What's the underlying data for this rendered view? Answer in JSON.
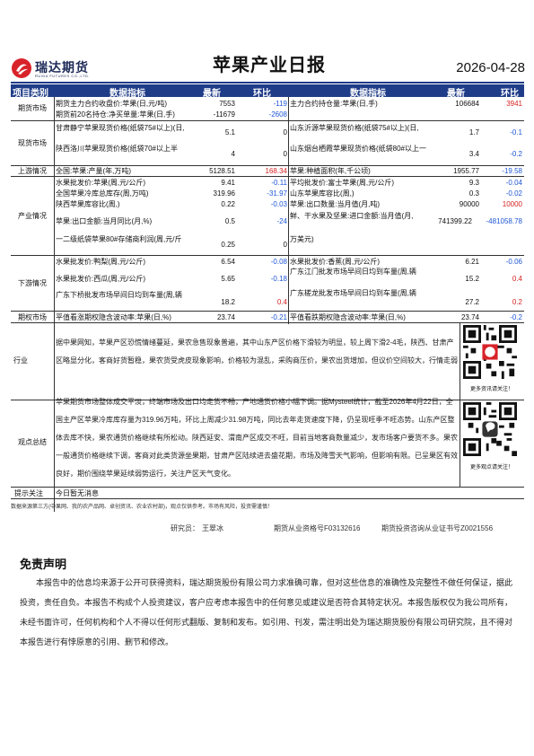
{
  "header": {
    "brand_name": "瑞达期货",
    "brand_sub": "RUIDA FUTURES CO.,LTD.",
    "title": "苹果产业日报",
    "date": "2026-04-28"
  },
  "colors": {
    "header_bg": "#1f3c88",
    "negative": "#1f57d6",
    "positive": "#d62222",
    "logo_red": "#d8232a"
  },
  "table": {
    "headers": {
      "category": "项目类别",
      "indicator": "数据指标",
      "latest": "最新",
      "change": "环比"
    },
    "rows": {
      "futures_1": {
        "category": "期货市场",
        "l_name": "期货主力合约收盘价:苹果(日,元/吨)",
        "l_val": "7553",
        "l_chg": "-119",
        "r_name": "主力合约持仓量:苹果(日,手)",
        "r_val": "106684",
        "r_chg": "3941"
      },
      "futures_2": {
        "l_name": "期货前20名持仓:净买单量:苹果(日,手)",
        "l_val": "-11679",
        "l_chg": "-2608"
      },
      "spot_1": {
        "l_name": "甘肃静宁苹果现货价格(纸袋75#以上)(日,",
        "l_val": "5.1",
        "l_chg": "0",
        "r_name": "山东沂源苹果现货价格(纸袋75#以上)(日,",
        "r_val": "1.7",
        "r_chg": "-0.1"
      },
      "spot_2": {
        "category": "现货市场",
        "l_name": "陕西洛川苹果现货价格(纸袋70#以上半",
        "l_val": "4",
        "l_chg": "0",
        "r_name": "山东烟台栖霞苹果现货价格(纸袋80#以上一",
        "r_val": "3.4",
        "r_chg": "-0.2"
      },
      "upstream": {
        "category": "上游情况",
        "l_name": "全国:苹果:产量(年,万吨)",
        "l_val": "5128.51",
        "l_chg": "168.34",
        "r_name": "苹果:种植面积(年,千公顷)",
        "r_val": "1955.77",
        "r_chg": "-19.58"
      },
      "ind_1": {
        "l_name": "水果批发价:苹果(周,元/公斤)",
        "l_val": "9.41",
        "l_chg": "-0.11",
        "r_name": "平均批发价:富士苹果(周,元/公斤)",
        "r_val": "9.3",
        "r_chg": "-0.04"
      },
      "ind_2": {
        "l_name": "全国苹果冷库总库存(周,万吨)",
        "l_val": "319.96",
        "l_chg": "-31.97",
        "r_name": "山东苹果库容比(周,)",
        "r_val": "0.3",
        "r_chg": "-0.02"
      },
      "ind_3": {
        "l_name": "陕西苹果库容比(周,)",
        "l_val": "0.22",
        "l_chg": "-0.03",
        "r_name": "苹果:出口数量:当月值(月,吨)",
        "r_val": "90000",
        "r_chg": "10000"
      },
      "ind_4": {
        "category": "产业情况",
        "l_name": "苹果:出口金额:当月同比(月,%)",
        "l_val": "0.5",
        "l_chg": "-24",
        "r_name": "鲜、干水果及坚果:进口金额:当月值(月,",
        "r_val": "741399.22",
        "r_chg": "-481058.78"
      },
      "ind_4b": {
        "r_name": "万美元)"
      },
      "ind_5": {
        "l_name": "一二级纸袋苹果80#存储商利润(周,元/斤",
        "l_val": "0.25",
        "l_chg": "0"
      },
      "down_1": {
        "l_name": "水果批发价:鸭梨(周,元/公斤)",
        "l_val": "6.54",
        "l_chg": "-0.08",
        "r_name": "水果批发价:香蕉(周,元/公斤)",
        "r_val": "6.21",
        "r_chg": "-0.06"
      },
      "down_2": {
        "category": "下游情况",
        "l_name": "水果批发价:西瓜(周,元/公斤)",
        "l_val": "5.65",
        "l_chg": "-0.18",
        "r_name": "广东江门批发市场早间日均到车量(周,辆",
        "r_val": "15.2",
        "r_chg": "0.4"
      },
      "down_3": {
        "l_name": "广东下桥批发市场早间日均到车量(周,辆",
        "l_val": "18.2",
        "l_chg": "0.4",
        "r_name": "广东槎龙批发市场早间日均到车量(周,辆",
        "r_val": "27.2",
        "r_chg": "0.2"
      },
      "options": {
        "category": "期权市场",
        "l_name": "平值看涨期权隐含波动率:苹果(日,%)",
        "l_val": "23.74",
        "l_chg": "-0.21",
        "r_name": "平值看跌期权隐含波动率:苹果(日,%)",
        "r_val": "23.74",
        "r_chg": "-0.2"
      }
    }
  },
  "industry": {
    "label": "行业",
    "text": "据中果网知，苹果产区恐慌情绪蔓延，果农急售现象普遍，其中山东产区价格下滑较为明显，较上周下滑2-4毛，陕西、甘肃产区略显分化，客商好货暂稳，果农货受虎皮现象影响，价格较为混乱，采购商压价，果农出货增加，但议价空间较大，行情走弱"
  },
  "qr1_caption": "更多资讯请关注！",
  "summary": {
    "label": "观点总结",
    "text": "苹果期货市场整体成交平淡，终端市场及出口均走货不畅，产地通货价格小幅下调。据Mysteel统计，截至2026年4月22日，全国主产区苹果冷库库存量为319.96万吨，环比上周减少31.98万吨，同比去年走货速度下降，仍呈现旺季不旺态势。山东产区整体去库不快，果农通货价格继续有所松动。陕西延安、渭南产区成交不旺，目前当地客商数量减少，发市场客户要货不多。果农一般通货价格继续下调，客商对此类货源坐果期，甘肃产区陆续进去盛花期，市场及降雪天气影响，但影响有限。已呈果区有效良好，期价围绕苹果延续弱势运行，关注产区天气变化。"
  },
  "qr2_caption": "更多观点请关注！",
  "notice": {
    "label": "提示关注",
    "text": "今日暂无消息"
  },
  "footer": {
    "source": "数据来源第三方(中果网、我的农产品网、卓创资讯、农业农村部)，观点仅供参考。市场有风险，投资需谨慎！",
    "researcher_label": "研究员：",
    "researcher": "王翠冰",
    "cert": "期货从业资格号F03132616",
    "advisor": "期货投资咨询从业证书号Z0021556"
  },
  "disclaimer": {
    "title": "免责声明",
    "body": "本报告中的信息均来源于公开可获得资料，瑞达期货股份有限公司力求准确可靠，但对这些信息的准确性及完整性不做任何保证，据此投资，责任自负。本报告不构成个人投资建议，客户应考虑本报告中的任何意见或建议是否符合其特定状况。本报告版权仅为我公司所有，未经书面许可，任何机构和个人不得以任何形式翻版、复制和发布。如引用、刊发，需注明出处为瑞达期货股份有限公司研究院，且不得对本报告进行有悖原意的引用、删节和修改。"
  }
}
